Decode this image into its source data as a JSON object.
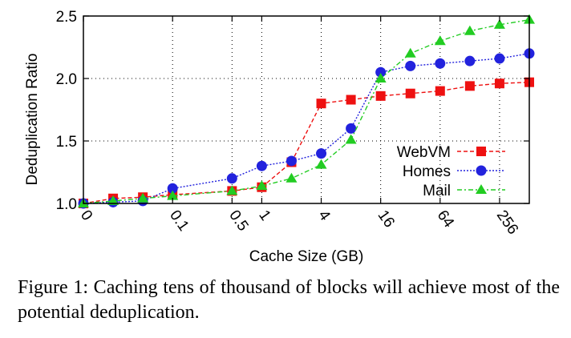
{
  "chart_data": {
    "type": "line",
    "xlabel": "Cache Size (GB)",
    "ylabel": "Deduplication Ratio",
    "ylim": [
      1.0,
      2.5
    ],
    "yticks": [
      "1.0",
      "1.5",
      "2.0",
      "2.5"
    ],
    "x_positions": [
      "0",
      "",
      "",
      "0.1",
      "",
      "0.5",
      "1",
      "",
      "4",
      "",
      "16",
      "",
      "64",
      "",
      "256",
      ""
    ],
    "xtick_labels": [
      {
        "index": 0,
        "label": "0"
      },
      {
        "index": 3,
        "label": "0.1"
      },
      {
        "index": 5,
        "label": "0.5"
      },
      {
        "index": 6,
        "label": "1"
      },
      {
        "index": 8,
        "label": "4"
      },
      {
        "index": 10,
        "label": "16"
      },
      {
        "index": 12,
        "label": "64"
      },
      {
        "index": 14,
        "label": "256"
      }
    ],
    "grid": true,
    "legend_position": "bottom-right",
    "series": [
      {
        "name": "WebVM",
        "color": "#ee1111",
        "marker": "square",
        "values": [
          1.0,
          1.04,
          1.05,
          1.07,
          null,
          1.1,
          1.13,
          1.33,
          1.8,
          1.83,
          1.86,
          1.88,
          1.9,
          1.94,
          1.96,
          1.97
        ]
      },
      {
        "name": "Homes",
        "color": "#2222dd",
        "marker": "circle",
        "values": [
          1.0,
          1.01,
          1.02,
          1.12,
          null,
          1.2,
          1.3,
          1.34,
          1.4,
          1.6,
          2.05,
          2.1,
          2.12,
          2.14,
          2.16,
          2.2
        ]
      },
      {
        "name": "Mail",
        "color": "#22cc22",
        "marker": "triangle",
        "values": [
          1.0,
          1.02,
          1.04,
          1.06,
          null,
          1.1,
          1.14,
          1.2,
          1.31,
          1.51,
          2.0,
          2.2,
          2.3,
          2.38,
          2.43,
          2.47
        ]
      }
    ]
  },
  "caption": "Figure 1:  Caching tens of thousand of blocks will achieve most of the potential deduplication."
}
